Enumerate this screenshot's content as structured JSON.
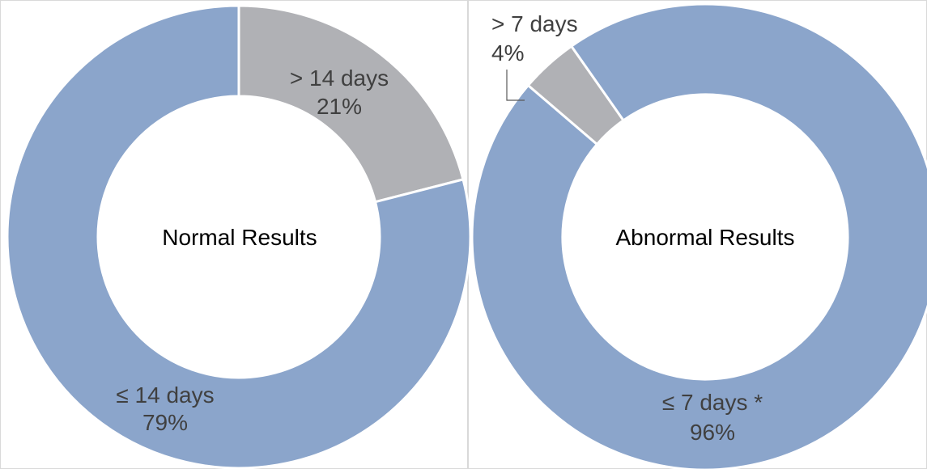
{
  "chart_data": [
    {
      "type": "pie",
      "variant": "donut",
      "center_label": "Normal Results",
      "slices": [
        {
          "label": "> 14 days",
          "value": 21,
          "value_label": "21%",
          "color": "#b0b1b5"
        },
        {
          "label": "≤ 14 days",
          "value": 79,
          "value_label": "79%",
          "color": "#8ba5cb"
        }
      ]
    },
    {
      "type": "pie",
      "variant": "donut",
      "center_label": "Abnormal Results",
      "slices": [
        {
          "label": "> 7 days",
          "value": 4,
          "value_label": "4%",
          "color": "#b0b1b5"
        },
        {
          "label": "≤ 7 days *",
          "value": 96,
          "value_label": "96%",
          "color": "#8ba5cb"
        }
      ]
    }
  ]
}
